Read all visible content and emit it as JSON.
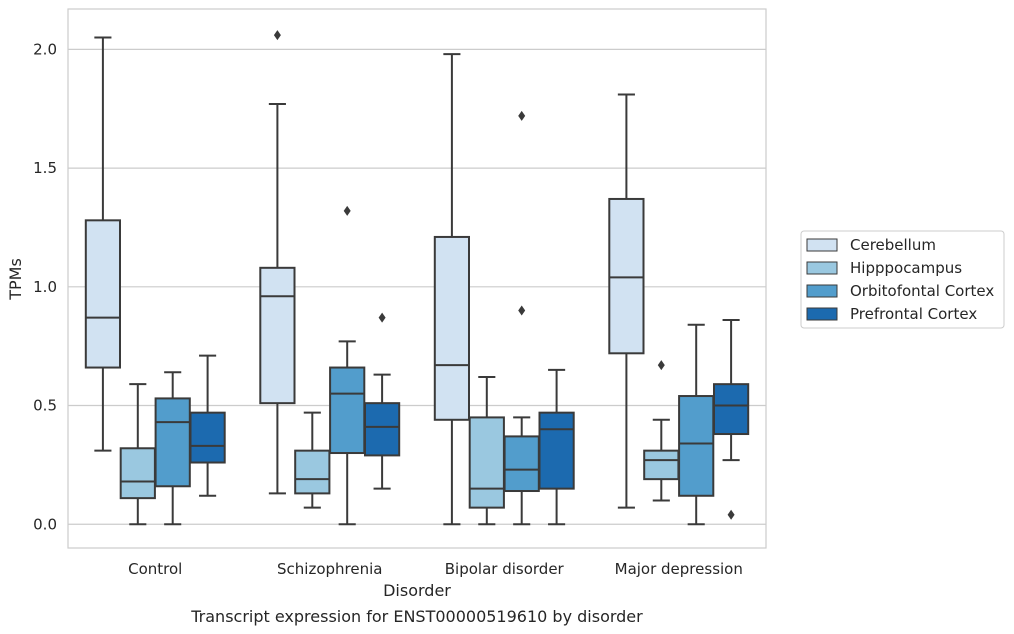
{
  "chart_data": {
    "type": "box",
    "xlabel": "Disorder",
    "ylabel": "TPMs",
    "caption": "Transcript expression for ENST00000519610 by disorder",
    "ylim": [
      -0.1,
      2.17
    ],
    "yticks": [
      0.0,
      0.5,
      1.0,
      1.5,
      2.0
    ],
    "ytick_labels": [
      "0.0",
      "0.5",
      "1.0",
      "1.5",
      "2.0"
    ],
    "grid": "horizontal",
    "legend_position": "right",
    "categories": [
      "Control",
      "Schizophrenia",
      "Bipolar disorder",
      "Major depression"
    ],
    "series": [
      {
        "name": "Cerebellum",
        "color": "#d1e2f2",
        "boxes": [
          {
            "whislo": 0.31,
            "q1": 0.66,
            "med": 0.87,
            "q3": 1.28,
            "whishi": 2.05,
            "fliers": []
          },
          {
            "whislo": 0.13,
            "q1": 0.51,
            "med": 0.96,
            "q3": 1.08,
            "whishi": 1.77,
            "fliers": [
              2.06
            ]
          },
          {
            "whislo": 0.0,
            "q1": 0.44,
            "med": 0.67,
            "q3": 1.21,
            "whishi": 1.98,
            "fliers": []
          },
          {
            "whislo": 0.07,
            "q1": 0.72,
            "med": 1.04,
            "q3": 1.37,
            "whishi": 1.81,
            "fliers": []
          }
        ]
      },
      {
        "name": "Hipppocampus",
        "color": "#9ac8e0",
        "boxes": [
          {
            "whislo": 0.0,
            "q1": 0.11,
            "med": 0.18,
            "q3": 0.32,
            "whishi": 0.59,
            "fliers": []
          },
          {
            "whislo": 0.07,
            "q1": 0.13,
            "med": 0.19,
            "q3": 0.31,
            "whishi": 0.47,
            "fliers": []
          },
          {
            "whislo": 0.0,
            "q1": 0.07,
            "med": 0.15,
            "q3": 0.45,
            "whishi": 0.62,
            "fliers": []
          },
          {
            "whislo": 0.1,
            "q1": 0.19,
            "med": 0.27,
            "q3": 0.31,
            "whishi": 0.44,
            "fliers": [
              0.67
            ]
          }
        ]
      },
      {
        "name": "Orbitofontal Cortex",
        "color": "#529dcc",
        "boxes": [
          {
            "whislo": 0.0,
            "q1": 0.16,
            "med": 0.43,
            "q3": 0.53,
            "whishi": 0.64,
            "fliers": []
          },
          {
            "whislo": 0.0,
            "q1": 0.3,
            "med": 0.55,
            "q3": 0.66,
            "whishi": 0.77,
            "fliers": [
              1.32
            ]
          },
          {
            "whislo": 0.0,
            "q1": 0.14,
            "med": 0.23,
            "q3": 0.37,
            "whishi": 0.45,
            "fliers": [
              0.9,
              1.72
            ]
          },
          {
            "whislo": 0.0,
            "q1": 0.12,
            "med": 0.34,
            "q3": 0.54,
            "whishi": 0.84,
            "fliers": []
          }
        ]
      },
      {
        "name": "Prefrontal Cortex",
        "color": "#1c6aaf",
        "boxes": [
          {
            "whislo": 0.12,
            "q1": 0.26,
            "med": 0.33,
            "q3": 0.47,
            "whishi": 0.71,
            "fliers": []
          },
          {
            "whislo": 0.15,
            "q1": 0.29,
            "med": 0.41,
            "q3": 0.51,
            "whishi": 0.63,
            "fliers": [
              0.87
            ]
          },
          {
            "whislo": 0.0,
            "q1": 0.15,
            "med": 0.4,
            "q3": 0.47,
            "whishi": 0.65,
            "fliers": []
          },
          {
            "whislo": 0.27,
            "q1": 0.38,
            "med": 0.5,
            "q3": 0.59,
            "whishi": 0.86,
            "fliers": [
              0.04
            ]
          }
        ]
      }
    ]
  }
}
